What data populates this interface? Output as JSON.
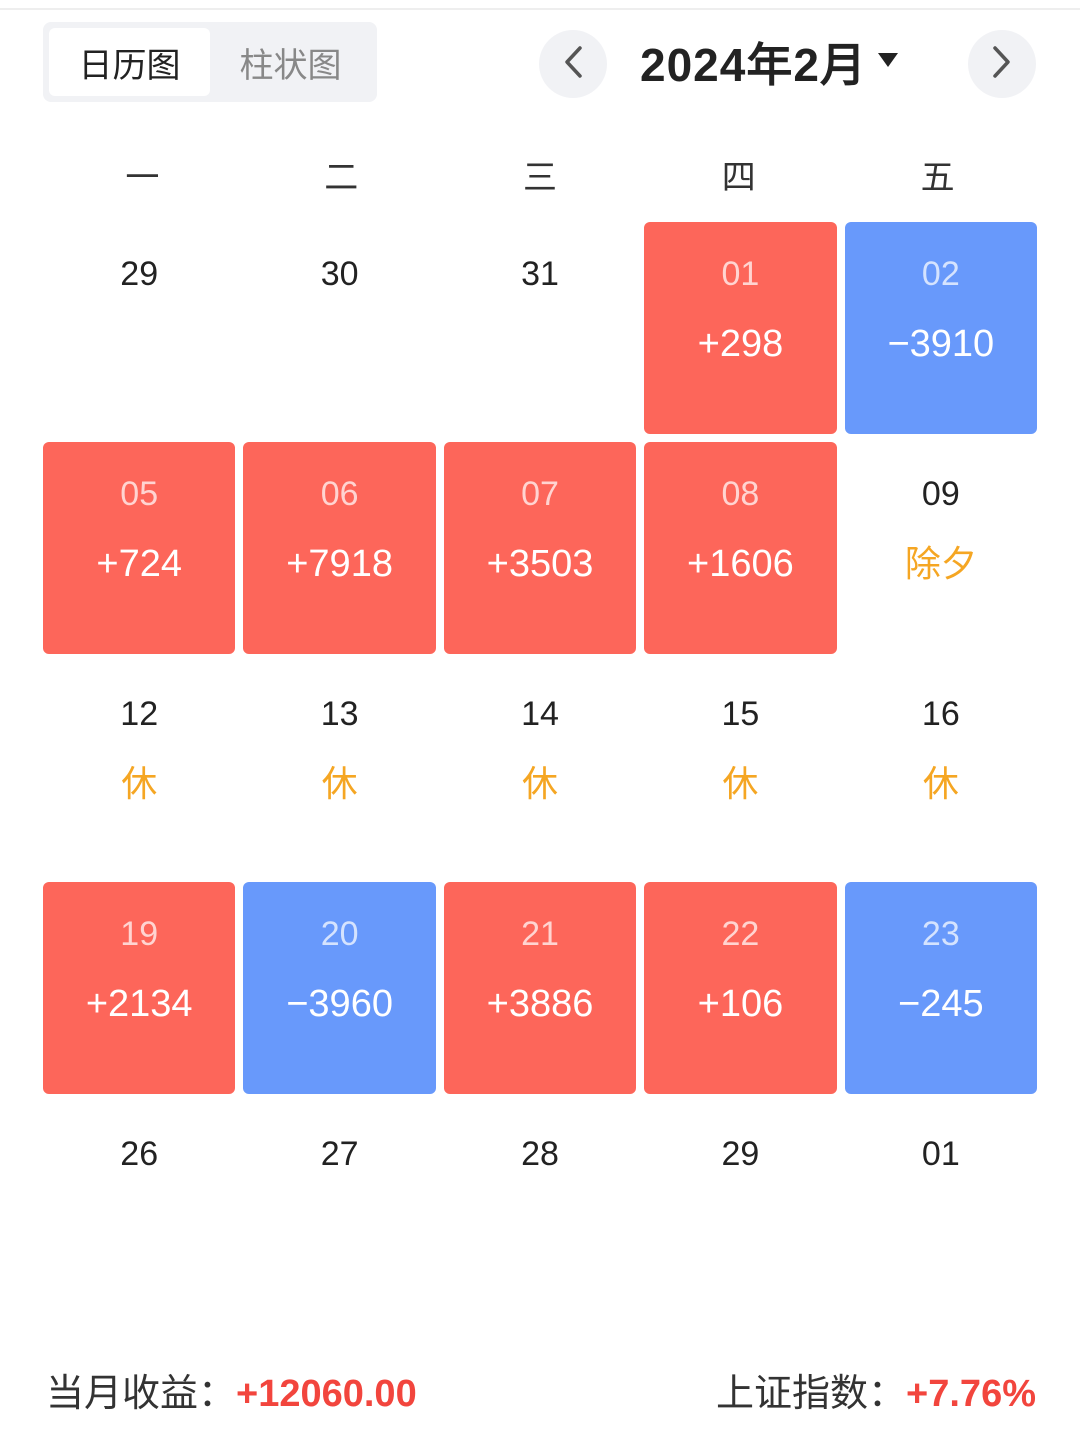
{
  "tabs": [
    {
      "label": "日历图",
      "active": true
    },
    {
      "label": "柱状图",
      "active": false
    }
  ],
  "nav": {
    "month_label": "2024年2月",
    "prev_icon": "chevron-left-icon",
    "next_icon": "chevron-right-icon",
    "dropdown_icon": "caret-down-icon"
  },
  "weekdays": [
    "一",
    "二",
    "三",
    "四",
    "五"
  ],
  "colors": {
    "up": "#fd665a",
    "down": "#6899fb",
    "note": "#f5a623",
    "positive_text": "#f2453d"
  },
  "weeks": [
    [
      {
        "day": "29"
      },
      {
        "day": "30"
      },
      {
        "day": "31"
      },
      {
        "day": "01",
        "value": "+298",
        "status": "up"
      },
      {
        "day": "02",
        "value": "−3910",
        "status": "down"
      }
    ],
    [
      {
        "day": "05",
        "value": "+724",
        "status": "up"
      },
      {
        "day": "06",
        "value": "+7918",
        "status": "up"
      },
      {
        "day": "07",
        "value": "+3503",
        "status": "up"
      },
      {
        "day": "08",
        "value": "+1606",
        "status": "up"
      },
      {
        "day": "09",
        "note": "除夕"
      }
    ],
    [
      {
        "day": "12",
        "note": "休"
      },
      {
        "day": "13",
        "note": "休"
      },
      {
        "day": "14",
        "note": "休"
      },
      {
        "day": "15",
        "note": "休"
      },
      {
        "day": "16",
        "note": "休"
      }
    ],
    [
      {
        "day": "19",
        "value": "+2134",
        "status": "up"
      },
      {
        "day": "20",
        "value": "−3960",
        "status": "down"
      },
      {
        "day": "21",
        "value": "+3886",
        "status": "up"
      },
      {
        "day": "22",
        "value": "+106",
        "status": "up"
      },
      {
        "day": "23",
        "value": "−245",
        "status": "down"
      }
    ],
    [
      {
        "day": "26"
      },
      {
        "day": "27"
      },
      {
        "day": "28"
      },
      {
        "day": "29"
      },
      {
        "day": "01"
      }
    ]
  ],
  "summary": {
    "month_label": "当月收益：",
    "month_value": "+12060.00",
    "index_label": "上证指数：",
    "index_value": "+7.76%"
  }
}
